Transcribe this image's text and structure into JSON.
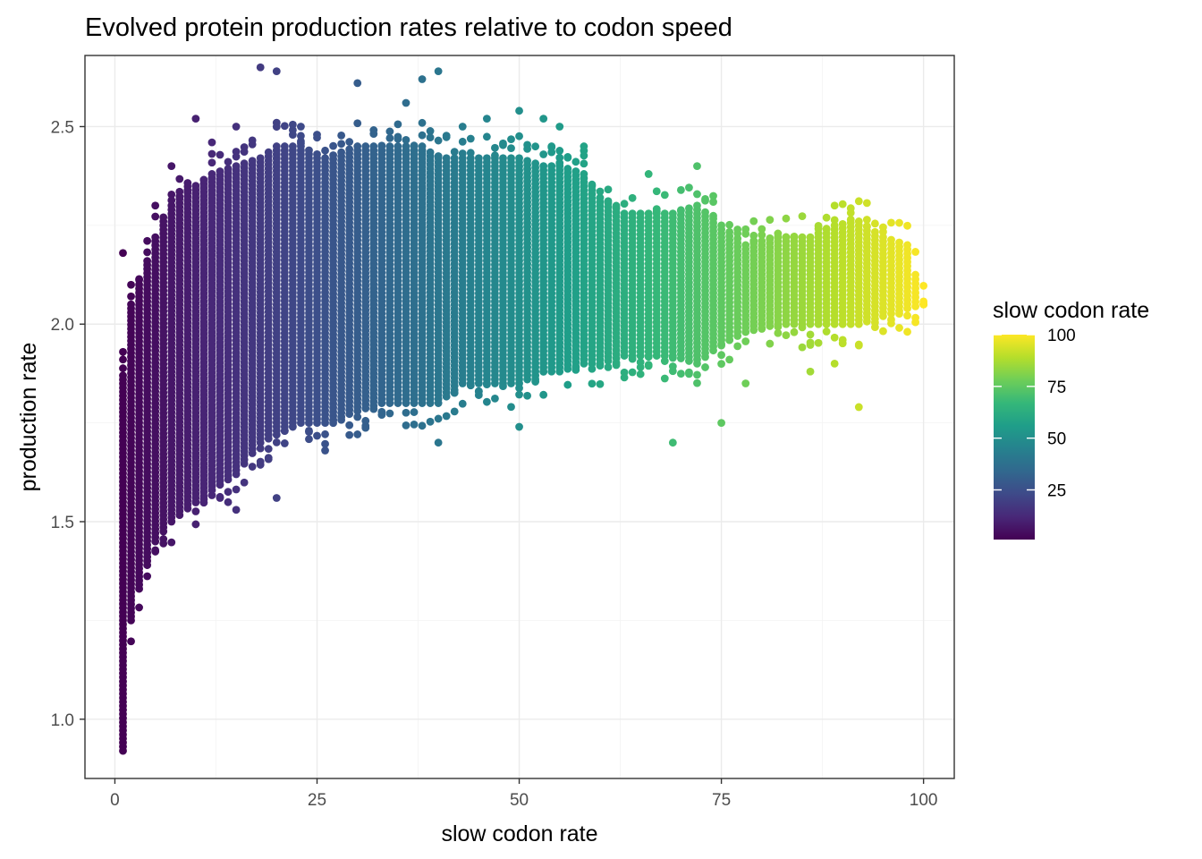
{
  "chart_data": {
    "type": "scatter",
    "title": "Evolved protein production rates relative to codon speed",
    "xlabel": "slow codon rate",
    "ylabel": "production rate",
    "xlim": [
      -3.7,
      103.8
    ],
    "ylim": [
      0.85,
      2.68
    ],
    "x_ticks": [
      0,
      25,
      50,
      75,
      100
    ],
    "y_ticks": [
      1.0,
      1.5,
      2.0,
      2.5
    ],
    "x_tick_labels": [
      "0",
      "25",
      "50",
      "75",
      "100"
    ],
    "y_tick_labels": [
      "1.0",
      "1.5",
      "2.0",
      "2.5"
    ],
    "grid": true,
    "color_scale": {
      "name": "viridis",
      "legend_title": "slow codon rate",
      "range": [
        1,
        100
      ],
      "breaks": [
        25,
        50,
        75,
        100
      ],
      "break_labels": [
        "25",
        "50",
        "75",
        "100"
      ],
      "stops": [
        "#440154",
        "#482878",
        "#3e4a89",
        "#31688e",
        "#26828e",
        "#1f9e89",
        "#35b779",
        "#6ece58",
        "#b5de2b",
        "#fde725"
      ]
    },
    "legend_position": "right",
    "columns": [
      {
        "x": 1,
        "y_min": 0.92,
        "y_max": 1.87,
        "outliers": [
          2.18
        ]
      },
      {
        "x": 2,
        "y_min": 1.25,
        "y_max": 2.05,
        "outliers": []
      },
      {
        "x": 3,
        "y_min": 1.33,
        "y_max": 2.1,
        "outliers": []
      },
      {
        "x": 5,
        "y_min": 1.45,
        "y_max": 2.22,
        "outliers": [
          2.3
        ]
      },
      {
        "x": 7,
        "y_min": 1.5,
        "y_max": 2.3,
        "outliers": [
          2.4
        ]
      },
      {
        "x": 10,
        "y_min": 1.55,
        "y_max": 2.35,
        "outliers": [
          2.52
        ]
      },
      {
        "x": 12,
        "y_min": 1.58,
        "y_max": 2.38,
        "outliers": [
          2.46
        ]
      },
      {
        "x": 15,
        "y_min": 1.62,
        "y_max": 2.4,
        "outliers": [
          1.53,
          2.5
        ]
      },
      {
        "x": 18,
        "y_min": 1.7,
        "y_max": 2.42,
        "outliers": [
          2.65
        ]
      },
      {
        "x": 20,
        "y_min": 1.72,
        "y_max": 2.45,
        "outliers": [
          1.56,
          2.64
        ]
      },
      {
        "x": 23,
        "y_min": 1.75,
        "y_max": 2.45,
        "outliers": [
          2.5
        ]
      },
      {
        "x": 26,
        "y_min": 1.75,
        "y_max": 2.42,
        "outliers": [
          1.68
        ]
      },
      {
        "x": 30,
        "y_min": 1.78,
        "y_max": 2.45,
        "outliers": [
          2.61
        ]
      },
      {
        "x": 33,
        "y_min": 1.8,
        "y_max": 2.45,
        "outliers": []
      },
      {
        "x": 36,
        "y_min": 1.8,
        "y_max": 2.45,
        "outliers": [
          2.56
        ]
      },
      {
        "x": 38,
        "y_min": 1.8,
        "y_max": 2.45,
        "outliers": [
          2.62
        ]
      },
      {
        "x": 40,
        "y_min": 1.8,
        "y_max": 2.42,
        "outliers": [
          1.7,
          2.64
        ]
      },
      {
        "x": 43,
        "y_min": 1.85,
        "y_max": 2.42,
        "outliers": [
          2.5
        ]
      },
      {
        "x": 46,
        "y_min": 1.85,
        "y_max": 2.42,
        "outliers": [
          2.52
        ]
      },
      {
        "x": 50,
        "y_min": 1.85,
        "y_max": 2.42,
        "outliers": [
          1.74,
          2.54
        ]
      },
      {
        "x": 53,
        "y_min": 1.88,
        "y_max": 2.4,
        "outliers": [
          2.52
        ]
      },
      {
        "x": 55,
        "y_min": 1.88,
        "y_max": 2.4,
        "outliers": [
          2.5
        ]
      },
      {
        "x": 58,
        "y_min": 1.9,
        "y_max": 2.38,
        "outliers": [
          2.45
        ]
      },
      {
        "x": 60,
        "y_min": 1.9,
        "y_max": 2.32,
        "outliers": []
      },
      {
        "x": 63,
        "y_min": 1.92,
        "y_max": 2.28,
        "outliers": []
      },
      {
        "x": 66,
        "y_min": 1.92,
        "y_max": 2.28,
        "outliers": [
          2.38
        ]
      },
      {
        "x": 69,
        "y_min": 1.92,
        "y_max": 2.28,
        "outliers": [
          1.7
        ]
      },
      {
        "x": 72,
        "y_min": 1.9,
        "y_max": 2.3,
        "outliers": [
          2.4
        ]
      },
      {
        "x": 75,
        "y_min": 1.95,
        "y_max": 2.25,
        "outliers": [
          1.75
        ]
      },
      {
        "x": 78,
        "y_min": 1.98,
        "y_max": 2.2,
        "outliers": [
          1.85
        ]
      },
      {
        "x": 82,
        "y_min": 2.0,
        "y_max": 2.22,
        "outliers": []
      },
      {
        "x": 86,
        "y_min": 2.0,
        "y_max": 2.22,
        "outliers": [
          1.88
        ]
      },
      {
        "x": 89,
        "y_min": 2.0,
        "y_max": 2.25,
        "outliers": [
          1.9
        ]
      },
      {
        "x": 92,
        "y_min": 2.0,
        "y_max": 2.26,
        "outliers": [
          1.79
        ]
      },
      {
        "x": 95,
        "y_min": 2.02,
        "y_max": 2.22,
        "outliers": []
      },
      {
        "x": 98,
        "y_min": 2.04,
        "y_max": 2.2,
        "outliers": []
      },
      {
        "x": 100,
        "y_min": 2.05,
        "y_max": 2.05,
        "outliers": []
      }
    ]
  }
}
